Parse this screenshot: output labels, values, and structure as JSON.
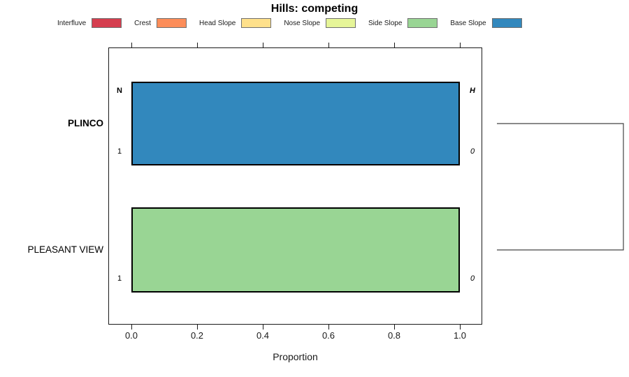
{
  "chart_data": {
    "type": "bar",
    "orientation": "horizontal",
    "title": "Hills: competing",
    "xlabel": "Proportion",
    "xlim": [
      0,
      1
    ],
    "grid": false,
    "legend_position": "top",
    "x_ticks": [
      {
        "value": 0.0,
        "label": "0.0"
      },
      {
        "value": 0.2,
        "label": "0.2"
      },
      {
        "value": 0.4,
        "label": "0.4"
      },
      {
        "value": 0.6,
        "label": "0.6"
      },
      {
        "value": 0.8,
        "label": "0.8"
      },
      {
        "value": 1.0,
        "label": "1.0"
      }
    ],
    "legend": [
      {
        "label": "Interfluve",
        "color": "#D53E4F"
      },
      {
        "label": "Crest",
        "color": "#FC8D59"
      },
      {
        "label": "Head Slope",
        "color": "#FEE08B"
      },
      {
        "label": "Nose Slope",
        "color": "#E6F598"
      },
      {
        "label": "Side Slope",
        "color": "#99D594"
      },
      {
        "label": "Base Slope",
        "color": "#3288BD"
      }
    ],
    "rows": [
      {
        "label": "PLINCO",
        "emphasis": true,
        "segments": [
          {
            "category": "Base Slope",
            "from": 0.0,
            "to": 1.0,
            "proportion": 1.0,
            "color": "#3288BD"
          }
        ],
        "annotations": {
          "top_left": "N",
          "bottom_left": "1",
          "top_right": "H",
          "bottom_right": "0"
        }
      },
      {
        "label": "PLEASANT VIEW",
        "emphasis": false,
        "segments": [
          {
            "category": "Side Slope",
            "from": 0.0,
            "to": 1.0,
            "proportion": 1.0,
            "color": "#99D594"
          }
        ],
        "annotations": {
          "top_left": "",
          "bottom_left": "1",
          "top_right": "",
          "bottom_right": "0"
        }
      }
    ],
    "dendrogram": {
      "connects": [
        "PLINCO",
        "PLEASANT VIEW"
      ]
    }
  }
}
